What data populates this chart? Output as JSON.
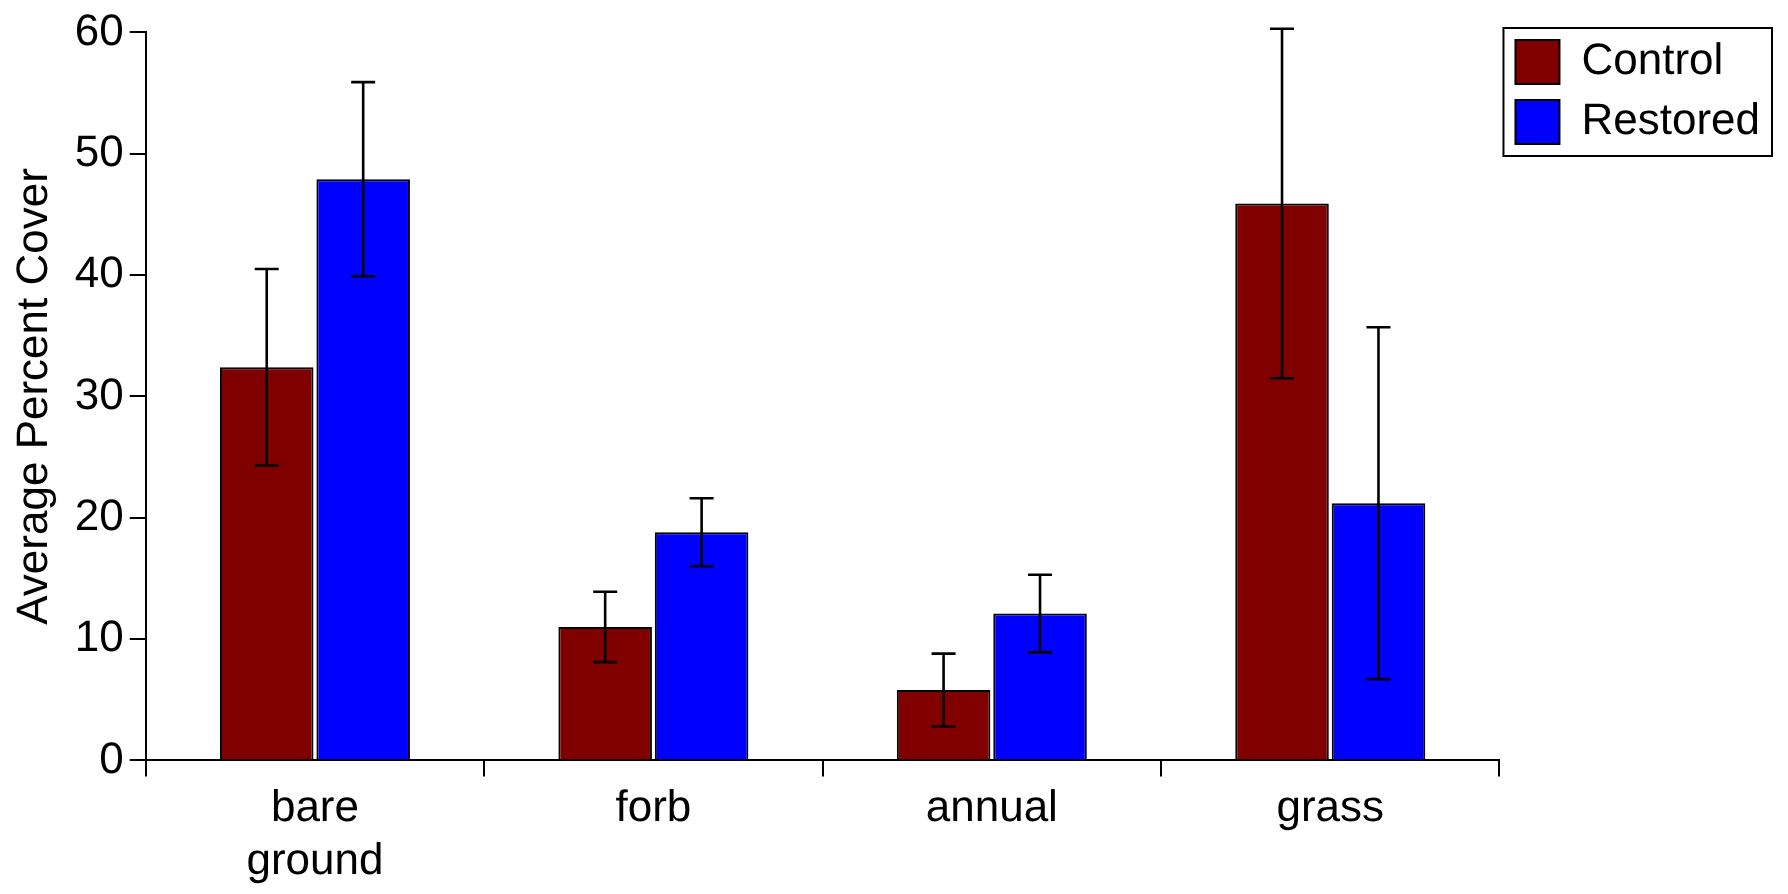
{
  "chart_data": {
    "type": "bar",
    "ylabel": "Average Percent Cover",
    "categories": [
      "bare ground",
      "forb",
      "annual",
      "grass"
    ],
    "series": [
      {
        "name": "Control",
        "color": "#800000",
        "values": [
          32.4,
          11.0,
          5.8,
          45.9
        ],
        "errors": [
          8.1,
          2.9,
          3.0,
          14.4
        ]
      },
      {
        "name": "Restored",
        "color": "#0000ff",
        "values": [
          47.9,
          18.8,
          12.1,
          21.2
        ],
        "errors": [
          8.0,
          2.8,
          3.2,
          14.5
        ]
      }
    ],
    "ylim": [
      0,
      60
    ],
    "yticks": [
      0,
      10,
      20,
      30,
      40,
      50,
      60
    ],
    "grid": false,
    "legend": "right"
  }
}
